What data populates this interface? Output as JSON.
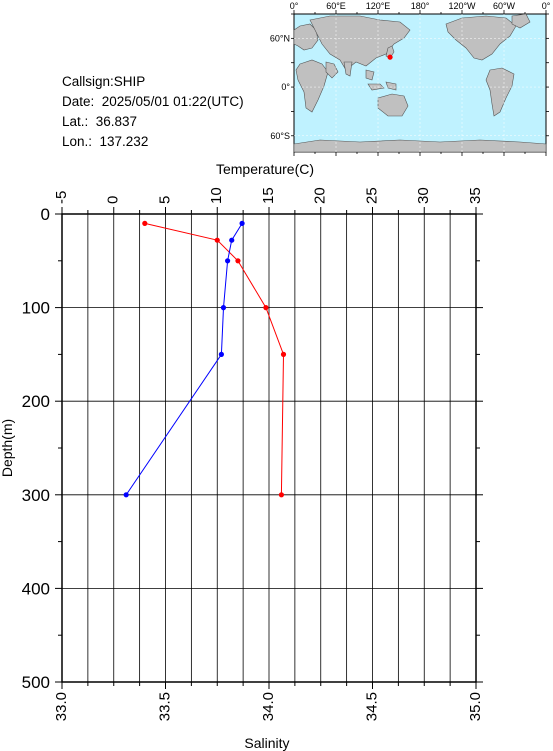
{
  "info": {
    "callsign": "Callsign:SHIP",
    "date": "Date:  2025/05/01 01:22(UTC)",
    "lat": "Lat.:  36.837",
    "lon": "Lon.:  137.232"
  },
  "map": {
    "top_labels": [
      "0°",
      "60°E",
      "120°E",
      "180°",
      "120°W",
      "60°W",
      "0°"
    ],
    "left_labels": [
      "60°N",
      "0°",
      "60°S"
    ],
    "station": {
      "lat": 36.837,
      "lon": 137.232
    },
    "colors": {
      "ocean": "#bff2ff",
      "land": "#c0c0c0",
      "marker": "#ff0000"
    }
  },
  "chart_data": {
    "type": "line",
    "ylabel": "Depth(m)",
    "ylim": [
      0,
      500
    ],
    "y_inverted": true,
    "y_ticks": [
      "0",
      "100",
      "200",
      "300",
      "400",
      "500"
    ],
    "temperature_axis": {
      "label": "Temperature(C)",
      "range": [
        -5,
        35
      ],
      "ticks": [
        "-5",
        "0",
        "5",
        "10",
        "15",
        "20",
        "25",
        "30",
        "35"
      ]
    },
    "salinity_axis": {
      "label": "Salinity",
      "range": [
        33.0,
        35.0
      ],
      "ticks": [
        "33.0",
        "33.5",
        "34.0",
        "34.5",
        "35.0"
      ]
    },
    "grid": true,
    "series": [
      {
        "axis": "temperature",
        "color": "#ff0000",
        "points": [
          {
            "value": 3.0,
            "depth": 10
          },
          {
            "value": 10.0,
            "depth": 28
          },
          {
            "value": 12.0,
            "depth": 50
          },
          {
            "value": 14.7,
            "depth": 100
          },
          {
            "value": 16.4,
            "depth": 150
          },
          {
            "value": 16.2,
            "depth": 300
          }
        ]
      },
      {
        "axis": "salinity",
        "color": "#0000ff",
        "points": [
          {
            "value": 33.87,
            "depth": 10
          },
          {
            "value": 33.82,
            "depth": 28
          },
          {
            "value": 33.8,
            "depth": 50
          },
          {
            "value": 33.78,
            "depth": 100
          },
          {
            "value": 33.77,
            "depth": 150
          },
          {
            "value": 33.31,
            "depth": 300
          }
        ]
      }
    ]
  }
}
